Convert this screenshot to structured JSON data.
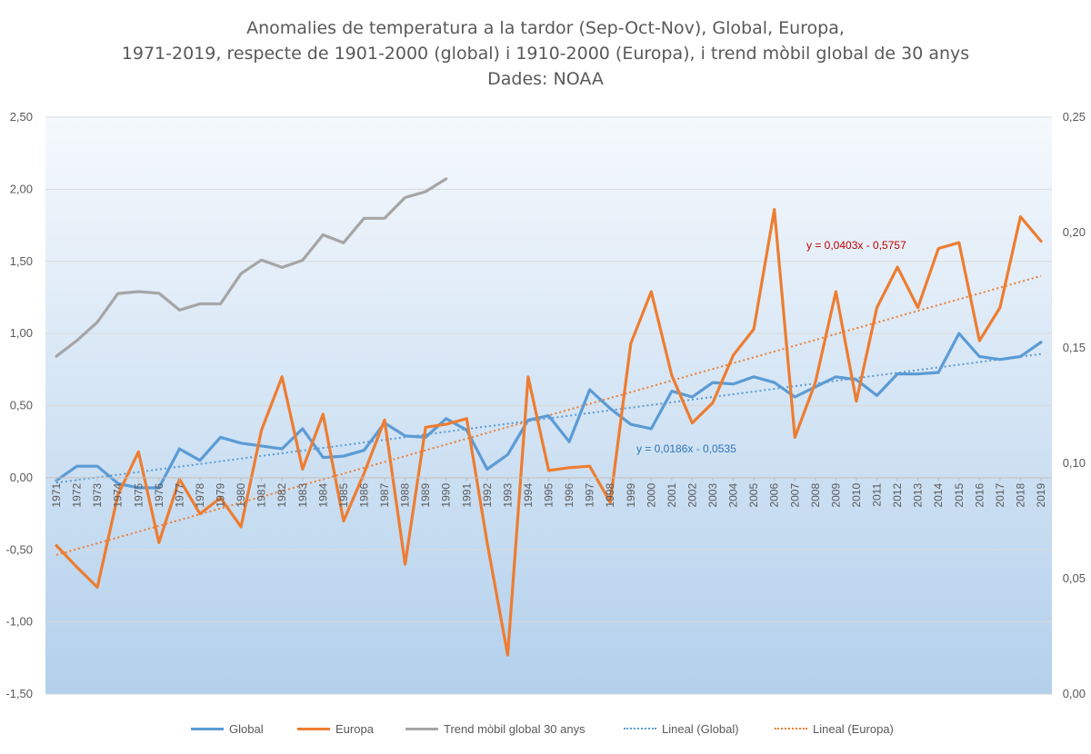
{
  "title": {
    "line1": "Anomalies de temperatura a la tardor (Sep-Oct-Nov), Global, Europa,",
    "line2": "1971-2019, respecte de 1901-2000 (global) i 1910-2000 (Europa), i trend mòbil global de 30 anys",
    "line3": "Dades: NOAA"
  },
  "legend": {
    "global": "Global",
    "europa": "Europa",
    "trend": "Trend mòbil global 30 anys",
    "lin_global": "Lineal  (Global)",
    "lin_europa": "Lineal  (Europa)"
  },
  "colors": {
    "global": "#5B9BD5",
    "europa": "#ED7D31",
    "trend": "#A5A5A5",
    "eq_europa": "#C00000",
    "eq_global": "#2E75B6",
    "axis_text": "#595959",
    "bg_top": "#F5F9FD",
    "bg_bottom": "#B3D0EC"
  },
  "chart_data": {
    "type": "line",
    "x": [
      1971,
      1972,
      1973,
      1974,
      1975,
      1976,
      1977,
      1978,
      1979,
      1980,
      1981,
      1982,
      1983,
      1984,
      1985,
      1986,
      1987,
      1988,
      1989,
      1990,
      1991,
      1992,
      1993,
      1994,
      1995,
      1996,
      1997,
      1998,
      1999,
      2000,
      2001,
      2002,
      2003,
      2004,
      2005,
      2006,
      2007,
      2008,
      2009,
      2010,
      2011,
      2012,
      2013,
      2014,
      2015,
      2016,
      2017,
      2018,
      2019
    ],
    "left_axis": {
      "range": [
        -1.5,
        2.5
      ],
      "ticks": [
        "2,50",
        "2,00",
        "1,50",
        "1,00",
        "0,50",
        "0,00",
        "-0,50",
        "-1,00",
        "-1,50"
      ]
    },
    "right_axis": {
      "range": [
        0.0,
        0.25
      ],
      "ticks": [
        "0,25",
        "0,20",
        "0,15",
        "0,10",
        "0,05",
        "0,00"
      ]
    },
    "series": [
      {
        "name": "Global",
        "axis": "left",
        "values": [
          -0.02,
          0.08,
          0.08,
          -0.04,
          -0.07,
          -0.07,
          0.2,
          0.12,
          0.28,
          0.24,
          0.22,
          0.2,
          0.34,
          0.14,
          0.15,
          0.19,
          0.38,
          0.29,
          0.28,
          0.41,
          0.33,
          0.06,
          0.16,
          0.4,
          0.43,
          0.25,
          0.61,
          0.48,
          0.37,
          0.34,
          0.6,
          0.56,
          0.66,
          0.65,
          0.7,
          0.66,
          0.56,
          0.63,
          0.7,
          0.68,
          0.57,
          0.72,
          0.72,
          0.73,
          1.0,
          0.84,
          0.82,
          0.84,
          0.94
        ]
      },
      {
        "name": "Europa",
        "axis": "left",
        "values": [
          -0.47,
          -0.62,
          -0.76,
          -0.12,
          0.18,
          -0.45,
          -0.01,
          -0.25,
          -0.14,
          -0.34,
          0.33,
          0.7,
          0.06,
          0.44,
          -0.3,
          0.03,
          0.4,
          -0.6,
          0.35,
          0.37,
          0.41,
          -0.45,
          -1.23,
          0.7,
          0.05,
          0.07,
          0.08,
          -0.17,
          0.93,
          1.29,
          0.71,
          0.38,
          0.52,
          0.85,
          1.03,
          1.86,
          0.28,
          0.66,
          1.29,
          0.53,
          1.18,
          1.46,
          1.18,
          1.59,
          1.63,
          0.95,
          1.18,
          1.81,
          1.64
        ]
      },
      {
        "name": "Trend mòbil global 30 anys",
        "axis": "right",
        "x": [
          1971,
          1972,
          1973,
          1974,
          1975,
          1976,
          1977,
          1978,
          1979,
          1980,
          1981,
          1982,
          1983,
          1984,
          1985,
          1986,
          1987,
          1988,
          1989,
          1990
        ],
        "values": [
          0.1464,
          0.1532,
          0.1612,
          0.1736,
          0.1744,
          0.1737,
          0.1664,
          0.1691,
          0.1691,
          0.1822,
          0.1881,
          0.1849,
          0.188,
          0.199,
          0.1956,
          0.2062,
          0.2062,
          0.2152,
          0.2177,
          0.2233
        ]
      }
    ],
    "trendlines": [
      {
        "name": "Lineal  (Global)",
        "of": "Global",
        "slope": 0.0186,
        "intercept": -0.0535,
        "equation": "y = 0,0186x - 0,0535"
      },
      {
        "name": "Lineal  (Europa)",
        "of": "Europa",
        "slope": 0.0403,
        "intercept": -0.5757,
        "equation": "y = 0,0403x - 0,5757"
      }
    ],
    "grid": true,
    "legend_position": "bottom"
  }
}
